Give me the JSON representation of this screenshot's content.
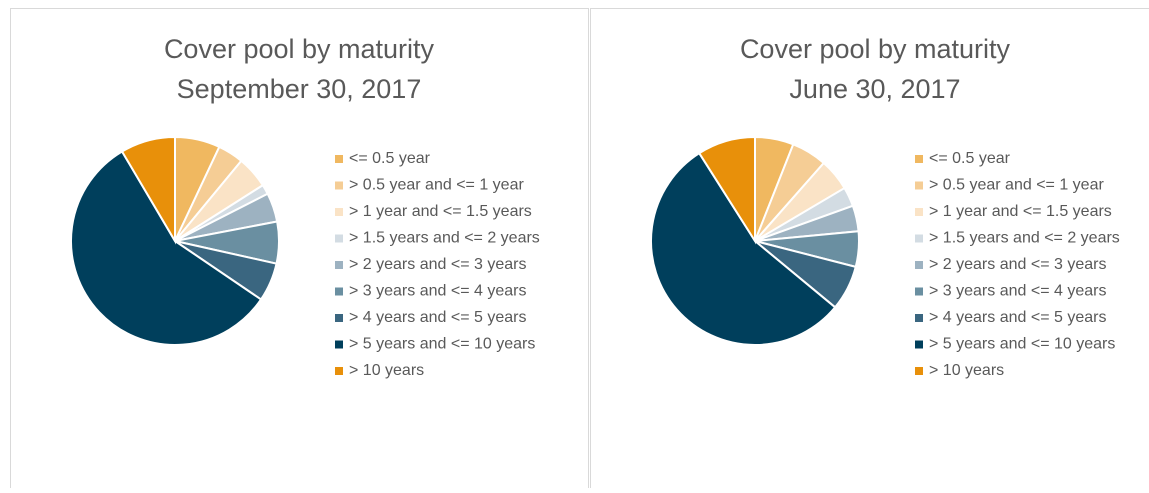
{
  "chart_data": [
    {
      "type": "pie",
      "title": "Cover pool by maturity",
      "subtitle": "September 30, 2017",
      "categories": [
        "<= 0.5 year",
        "> 0.5 year and <= 1 year",
        "> 1  year and <= 1.5 years",
        "> 1.5 years and <= 2 years",
        "> 2 years and <= 3 years",
        "> 3 years and <= 4 years",
        "> 4 years and <= 5 years",
        "> 5 years and <= 10 years",
        "> 10 years"
      ],
      "values": [
        7,
        4,
        5,
        1.5,
        4.5,
        6.5,
        6,
        57,
        8.5
      ],
      "colors": [
        "#f0b860",
        "#f5cd95",
        "#fae3c6",
        "#d3dce3",
        "#9db2c1",
        "#6a8fa1",
        "#3a6680",
        "#003f5c",
        "#e8900a"
      ],
      "legend": "right"
    },
    {
      "type": "pie",
      "title": "Cover pool by maturity",
      "subtitle": "June 30, 2017",
      "categories": [
        "<= 0.5 year",
        "> 0.5 year and <= 1 year",
        "> 1  year and <= 1.5 years",
        "> 1.5 years and <= 2 years",
        "> 2 years and <= 3 years",
        "> 3 years and <= 4 years",
        "> 4 years and <= 5 years",
        "> 5 years and <= 10 years",
        "> 10 years"
      ],
      "values": [
        6,
        5.5,
        5,
        3,
        4,
        5.5,
        7,
        55,
        9
      ],
      "colors": [
        "#f0b860",
        "#f5cd95",
        "#fae3c6",
        "#d3dce3",
        "#9db2c1",
        "#6a8fa1",
        "#3a6680",
        "#003f5c",
        "#e8900a"
      ],
      "legend": "right"
    }
  ]
}
